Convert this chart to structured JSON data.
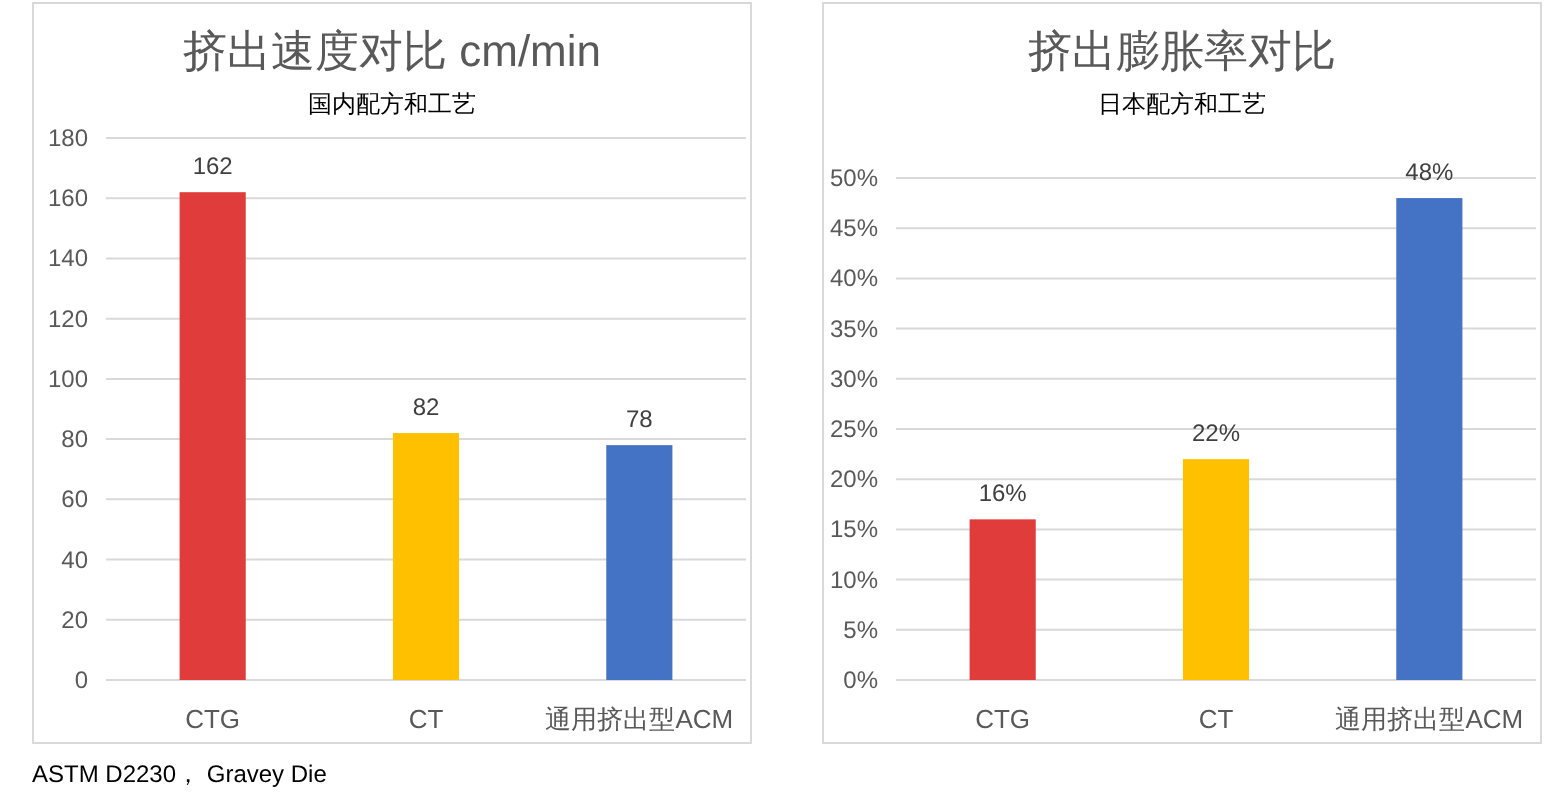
{
  "chart_data": [
    {
      "type": "bar",
      "title": "挤出速度对比 cm/min",
      "subtitle": "国内配方和工艺",
      "categories": [
        "CTG",
        "CT",
        "通用挤出型ACM"
      ],
      "values": [
        162,
        82,
        78
      ],
      "colors": [
        "#e03c3c",
        "#ffc000",
        "#4472c4"
      ],
      "ylim": [
        0,
        180
      ],
      "yticks": [
        0,
        20,
        40,
        60,
        80,
        100,
        120,
        140,
        160,
        180
      ],
      "grid": "y",
      "data_labels": true,
      "annotations": [
        "ASTM D2230， Gravey Die"
      ]
    },
    {
      "type": "bar",
      "title": "挤出膨胀率对比",
      "subtitle": "日本配方和工艺",
      "categories": [
        "CTG",
        "CT",
        "通用挤出型ACM"
      ],
      "values": [
        16,
        22,
        48
      ],
      "value_labels": [
        "16%",
        "22%",
        "48%"
      ],
      "colors": [
        "#e03c3c",
        "#ffc000",
        "#4472c4"
      ],
      "ylim": [
        0,
        50
      ],
      "yticks": [
        {
          "value": 0,
          "label": "0%"
        },
        {
          "value": 5,
          "label": "5%"
        },
        {
          "value": 10,
          "label": "10%"
        },
        {
          "value": 15,
          "label": "15%"
        },
        {
          "value": 20,
          "label": "20%"
        },
        {
          "value": 25,
          "label": "25%"
        },
        {
          "value": 30,
          "label": "30%"
        },
        {
          "value": 35,
          "label": "35%"
        },
        {
          "value": 40,
          "label": "40%"
        },
        {
          "value": 45,
          "label": "45%"
        },
        {
          "value": 50,
          "label": "50%"
        }
      ],
      "grid": "y"
    }
  ]
}
